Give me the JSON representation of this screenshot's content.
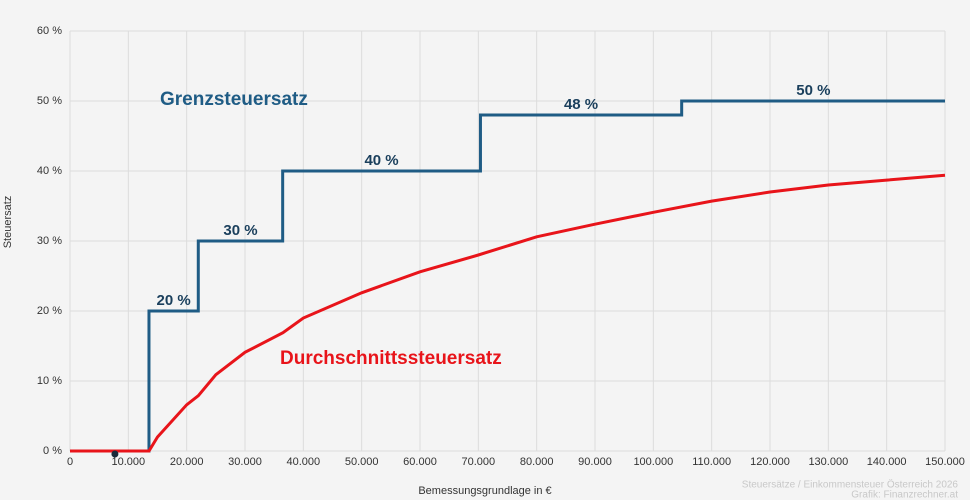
{
  "chart_data": {
    "type": "line",
    "y_label": "Steuersatz",
    "x_label": "Bemessungsgrundlage in €",
    "xlim": [
      0,
      150000
    ],
    "ylim": [
      0,
      60
    ],
    "xticks": [
      {
        "value": 0,
        "label": "0"
      },
      {
        "value": 10000,
        "label": "10.000"
      },
      {
        "value": 20000,
        "label": "20.000"
      },
      {
        "value": 30000,
        "label": "30.000"
      },
      {
        "value": 40000,
        "label": "40.000"
      },
      {
        "value": 50000,
        "label": "50.000"
      },
      {
        "value": 60000,
        "label": "60.000"
      },
      {
        "value": 70000,
        "label": "70.000"
      },
      {
        "value": 80000,
        "label": "80.000"
      },
      {
        "value": 90000,
        "label": "90.000"
      },
      {
        "value": 100000,
        "label": "100.000"
      },
      {
        "value": 110000,
        "label": "110.000"
      },
      {
        "value": 120000,
        "label": "120.000"
      },
      {
        "value": 130000,
        "label": "130.000"
      },
      {
        "value": 140000,
        "label": "140.000"
      },
      {
        "value": 150000,
        "label": "150.000"
      }
    ],
    "yticks": [
      {
        "value": 0,
        "label": "0 %"
      },
      {
        "value": 10,
        "label": "10 %"
      },
      {
        "value": 20,
        "label": "20 %"
      },
      {
        "value": 30,
        "label": "30 %"
      },
      {
        "value": 40,
        "label": "40 %"
      },
      {
        "value": 50,
        "label": "50 %"
      },
      {
        "value": 60,
        "label": "60 %"
      }
    ],
    "grid": true,
    "series": [
      {
        "name": "Grenzsteuersatz",
        "color": "#1f5c85",
        "x": [
          0,
          13539,
          13539,
          21992,
          21992,
          36458,
          36458,
          70365,
          70365,
          104859,
          104859,
          150000
        ],
        "values": [
          0,
          0,
          20,
          20,
          30,
          30,
          40,
          40,
          48,
          48,
          50,
          50
        ],
        "step_labels": [
          {
            "value": 20,
            "label": "20 %"
          },
          {
            "value": 30,
            "label": "30 %"
          },
          {
            "value": 40,
            "label": "40 %"
          },
          {
            "value": 48,
            "label": "48 %"
          },
          {
            "value": 50,
            "label": "50 %"
          }
        ]
      },
      {
        "name": "Durchschnittssteuersatz",
        "color": "#e8141a",
        "x": [
          0,
          13539,
          15000,
          20000,
          22000,
          25000,
          30000,
          36500,
          40000,
          50000,
          60000,
          70000,
          80000,
          90000,
          100000,
          110000,
          120000,
          130000,
          140000,
          150000
        ],
        "values": [
          0,
          0,
          2,
          6.6,
          7.9,
          10.9,
          14.1,
          16.9,
          19,
          22.6,
          25.6,
          28,
          30.6,
          32.4,
          34.1,
          35.7,
          37,
          38,
          38.7,
          39.4
        ]
      }
    ],
    "highlight": {
      "x": 7700,
      "y": 0
    },
    "footer": [
      "Steuersätze / Einkommensteuer Österreich 2026",
      "Grafik: Finanzrechner.at"
    ]
  }
}
